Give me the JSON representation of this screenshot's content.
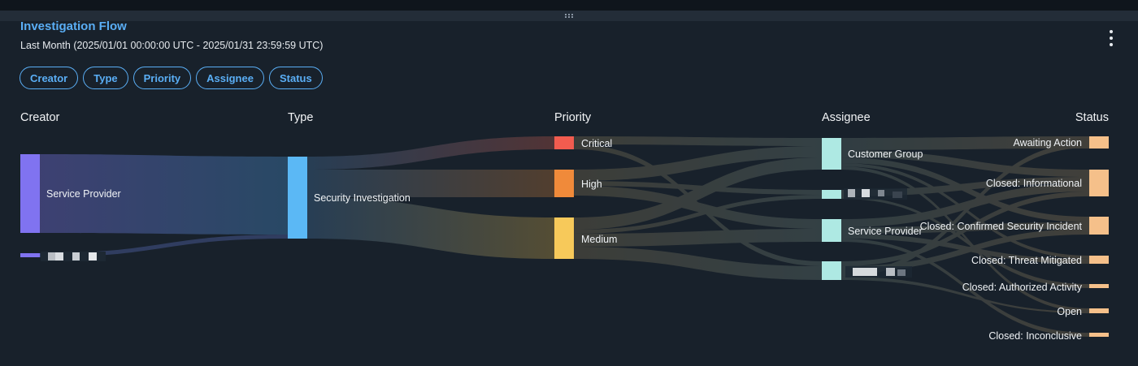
{
  "widget": {
    "title": "Investigation Flow",
    "subtitle": "Last Month (2025/01/01 00:00:00 UTC - 2025/01/31 23:59:59 UTC)",
    "menu_icon": "kebab-menu-icon"
  },
  "filters": [
    "Creator",
    "Type",
    "Priority",
    "Assignee",
    "Status"
  ],
  "columns": [
    "Creator",
    "Type",
    "Priority",
    "Assignee",
    "Status"
  ],
  "nodes": {
    "creator_sp": "Service Provider",
    "type_si": "Security Investigation",
    "priority_critical": "Critical",
    "priority_high": "High",
    "priority_medium": "Medium",
    "assignee_cg": "Customer Group",
    "assignee_sp": "Service Provider",
    "status_awaiting": "Awaiting Action",
    "status_info": "Closed: Informational",
    "status_confirmed": "Closed: Confirmed Security Incident",
    "status_threat": "Closed: Threat Mitigated",
    "status_authorized": "Closed: Authorized Activity",
    "status_open": "Open",
    "status_inconclusive": "Closed: Inconclusive"
  },
  "colors": {
    "creator": "#8073f0",
    "type": "#5bb8f5",
    "critical": "#f25c4f",
    "high": "#f08a3a",
    "medium": "#f7c95a",
    "assignee": "#aee9e3",
    "status": "#f5c08a",
    "title": "#5aaef5"
  }
}
